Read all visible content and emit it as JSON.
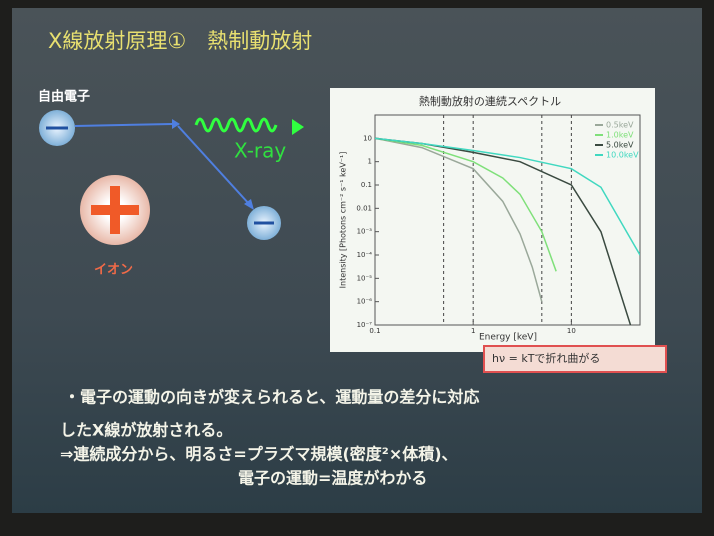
{
  "slide": {
    "title": "X線放射原理①　熱制動放射",
    "electron_label": "自由電子",
    "xray_label": "X-ray",
    "ion_label": "イオン",
    "callout": "hν = kTで折れ曲がる",
    "bullets": [
      "・電子の運動の向きが変えられると、運動量の差分に対応",
      "したX線が放射される。",
      "⇒連続成分から、明るさ=プラズマ規模(密度²×体積)、",
      "電子の運動=温度がわかる"
    ]
  },
  "chart": {
    "type": "line",
    "title": "熱制動放射の連続スペクトル",
    "x_label": "Energy [keV]",
    "y_label": "Intensity [Photons cm⁻² s⁻¹ keV⁻¹]",
    "log_x": true,
    "log_y": true,
    "xlim": [
      0.1,
      50
    ],
    "ylim": [
      1e-07,
      100
    ],
    "xticks": [
      0.1,
      1,
      10
    ],
    "yticks": [
      {
        "value": 1e-07,
        "label": "10⁻⁷"
      },
      {
        "value": 1e-06,
        "label": "10⁻⁶"
      },
      {
        "value": 1e-05,
        "label": "10⁻⁵"
      },
      {
        "value": 0.0001,
        "label": "10⁻⁴"
      },
      {
        "value": 0.001,
        "label": "10⁻³"
      },
      0.01,
      0.1,
      1,
      10
    ],
    "markers": [
      0.5,
      1,
      5,
      10
    ],
    "legend": "top-right",
    "series": [
      {
        "name": "0.5keV",
        "color": "#9aa89a",
        "x": [
          0.1,
          0.3,
          1,
          2,
          3,
          4,
          5
        ],
        "values": [
          10,
          4,
          0.5,
          0.02,
          0.0008,
          3e-05,
          1e-06
        ]
      },
      {
        "name": "1.0keV",
        "color": "#7fe07a",
        "x": [
          0.1,
          0.3,
          1,
          2,
          3,
          5,
          7
        ],
        "values": [
          10,
          5,
          1,
          0.2,
          0.04,
          0.001,
          2e-05
        ]
      },
      {
        "name": "5.0keV",
        "color": "#3a4a40",
        "x": [
          0.1,
          0.3,
          1,
          3,
          10,
          20,
          40
        ],
        "values": [
          10,
          6,
          2.5,
          1,
          0.1,
          0.001,
          1e-07
        ]
      },
      {
        "name": "10.0keV",
        "color": "#40d8c0",
        "x": [
          0.1,
          0.3,
          1,
          3,
          10,
          20,
          50
        ],
        "values": [
          10,
          6,
          3,
          1.5,
          0.5,
          0.08,
          0.0001
        ]
      }
    ]
  }
}
